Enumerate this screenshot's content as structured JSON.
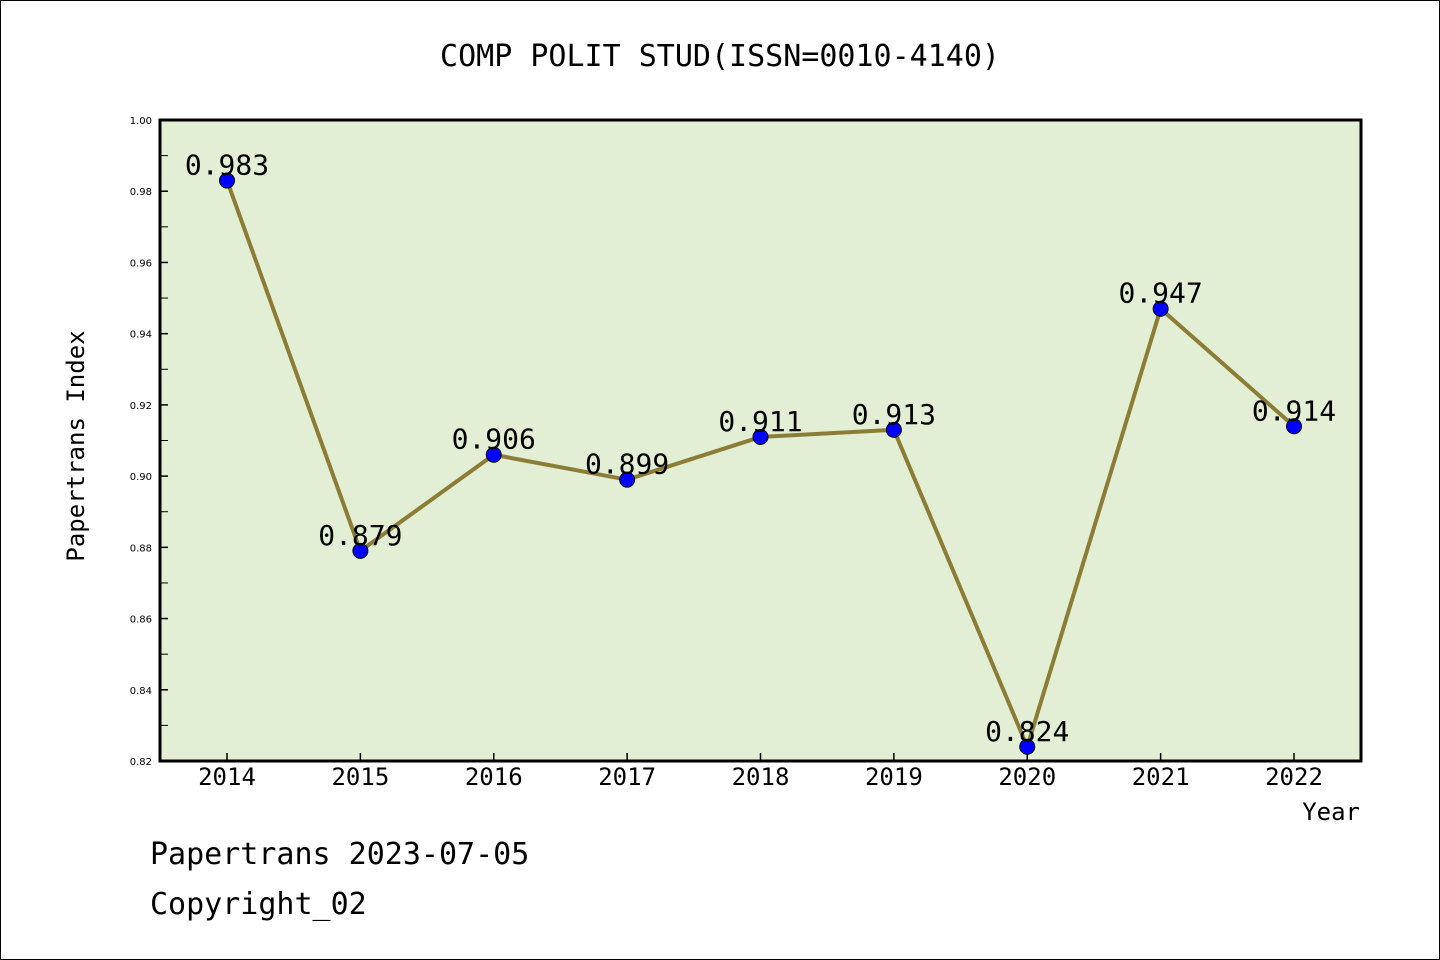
{
  "chart_data": {
    "type": "line",
    "title": "COMP POLIT STUD(ISSN=0010-4140)",
    "xlabel": "Year",
    "ylabel": "Papertrans Index",
    "categories": [
      "2014",
      "2015",
      "2016",
      "2017",
      "2018",
      "2019",
      "2020",
      "2021",
      "2022"
    ],
    "values": [
      0.983,
      0.879,
      0.906,
      0.899,
      0.911,
      0.913,
      0.824,
      0.947,
      0.914
    ],
    "data_labels": [
      "0.983",
      "0.879",
      "0.906",
      "0.899",
      "0.911",
      "0.913",
      "0.824",
      "0.947",
      "0.914"
    ],
    "ylim": [
      0.82,
      1.0
    ],
    "yticks": [
      "0.82",
      "0.84",
      "0.86",
      "0.88",
      "0.90",
      "0.92",
      "0.94",
      "0.96",
      "0.98",
      "1.00"
    ],
    "grid": false,
    "colors": {
      "plot_background": "#e2efd4",
      "line": "#8b7d35",
      "marker": "#0000ff"
    }
  },
  "footer": {
    "line1": "Papertrans 2023-07-05",
    "line2": "Copyright_02"
  }
}
